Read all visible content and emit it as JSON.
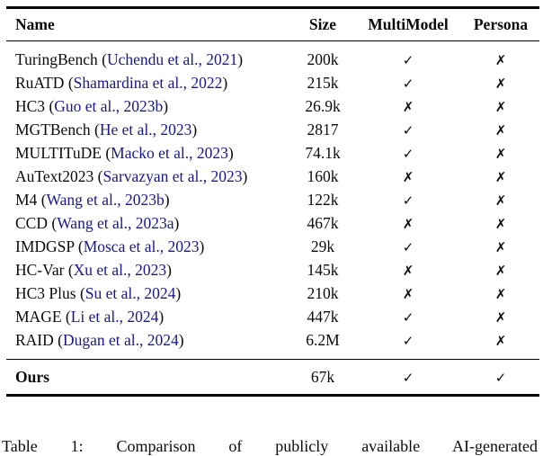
{
  "table": {
    "headers": [
      "Name",
      "Size",
      "MultiModel",
      "Persona"
    ],
    "citation_wrap": [
      "(",
      ")"
    ],
    "rows": [
      {
        "name": "TuringBench",
        "citation": "Uchendu et al., 2021",
        "size": "200k",
        "multimodel": true,
        "persona": false
      },
      {
        "name": "RuATD",
        "citation": "Shamardina et al., 2022",
        "size": "215k",
        "multimodel": true,
        "persona": false
      },
      {
        "name": "HC3",
        "citation": "Guo et al., 2023b",
        "size": "26.9k",
        "multimodel": false,
        "persona": false
      },
      {
        "name": "MGTBench",
        "citation": "He et al., 2023",
        "size": "2817",
        "multimodel": true,
        "persona": false
      },
      {
        "name": "MULTITuDE",
        "citation": "Macko et al., 2023",
        "size": "74.1k",
        "multimodel": true,
        "persona": false
      },
      {
        "name": "AuText2023",
        "citation": "Sarvazyan et al., 2023",
        "size": "160k",
        "multimodel": false,
        "persona": false
      },
      {
        "name": "M4",
        "citation": "Wang et al., 2023b",
        "size": "122k",
        "multimodel": true,
        "persona": false
      },
      {
        "name": "CCD",
        "citation": "Wang et al., 2023a",
        "size": "467k",
        "multimodel": false,
        "persona": false
      },
      {
        "name": "IMDGSP",
        "citation": "Mosca et al., 2023",
        "size": "29k",
        "multimodel": true,
        "persona": false
      },
      {
        "name": "HC-Var",
        "citation": "Xu et al., 2023",
        "size": "145k",
        "multimodel": false,
        "persona": false
      },
      {
        "name": "HC3 Plus",
        "citation": "Su et al., 2024",
        "size": "210k",
        "multimodel": false,
        "persona": false
      },
      {
        "name": "MAGE",
        "citation": "Li et al., 2024",
        "size": "447k",
        "multimodel": true,
        "persona": false
      },
      {
        "name": "RAID",
        "citation": "Dugan et al., 2024",
        "size": "6.2M",
        "multimodel": true,
        "persona": false
      }
    ],
    "final_row": {
      "name": "Ours",
      "size": "67k",
      "multimodel": true,
      "persona": true
    }
  },
  "marks": {
    "yes": "✓",
    "no": "✗"
  },
  "colors": {
    "citation_link": "#18188c",
    "text": "#0a0a0a",
    "rule": "#000000"
  },
  "caption": "Table 1: Comparison of publicly available AI-generated"
}
